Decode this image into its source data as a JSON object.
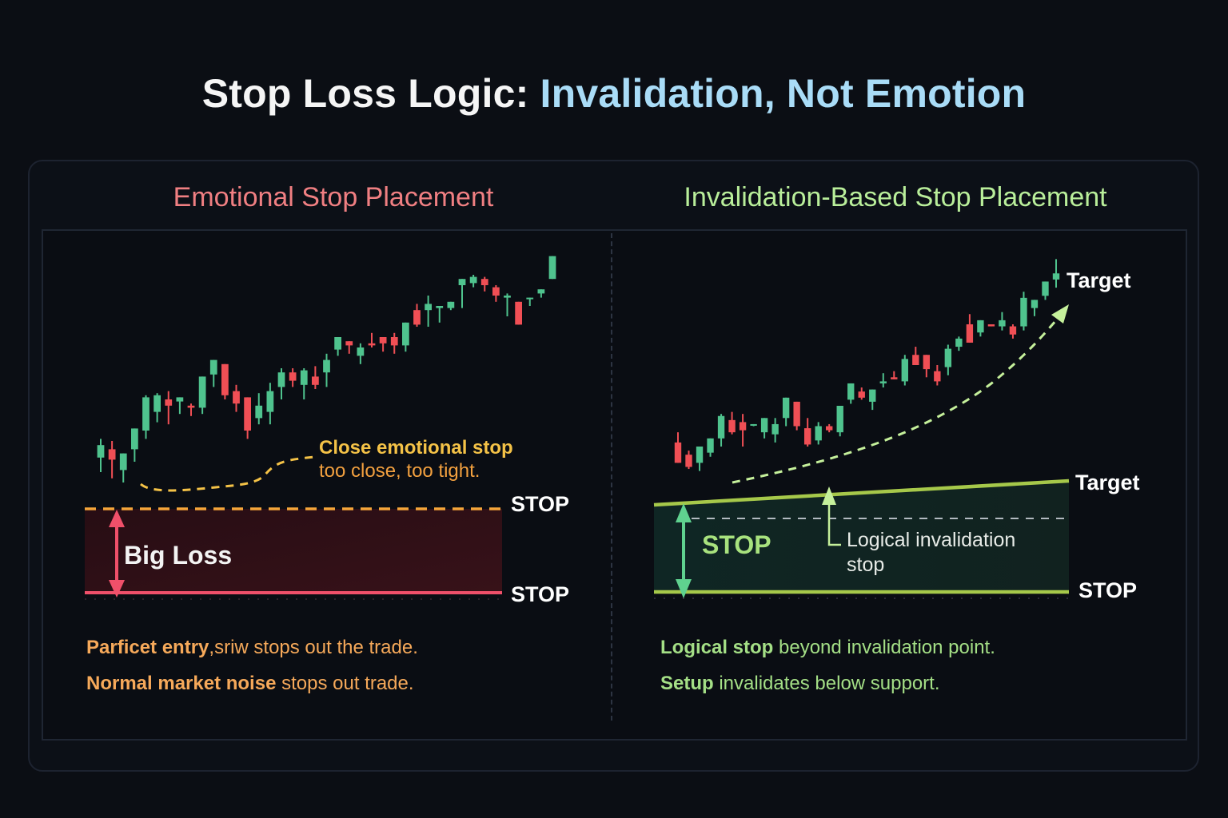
{
  "header": {
    "title_main": "Stop Loss Logic: ",
    "title_accent": "Invalidation, Not Emotion"
  },
  "colors": {
    "background": "#0b0e14",
    "bull_candle": "#4fc38e",
    "bear_candle": "#f04f55",
    "emotional_title": "#f07f82",
    "invalidation_title": "#b9ee9a",
    "title_accent": "#a9dcf7",
    "emotional_stop_line": "#f5a53a",
    "loss_line": "#f0506a",
    "invalidation_lines": "#a6c84a"
  },
  "left_panel": {
    "title": "Emotional Stop Placement",
    "annotation_title": "Close emotional stop",
    "annotation_subtitle": "too close, too tight.",
    "stop_label_top": "STOP",
    "stop_label_bottom": "STOP",
    "loss_label": "Big Loss",
    "note_1_bold": "Parficet entry",
    "note_1_rest": ",sriw stops out the trade.",
    "note_2_bold": "Normal market noise",
    "note_2_rest": " stops out trade."
  },
  "right_panel": {
    "title": "Invalidation-Based Stop Placement",
    "target_label_top": "Target",
    "target_label_mid": "Target",
    "stop_label_box": "STOP",
    "stop_label_bottom": "STOP",
    "logical_label_line1": "Logical invalidation",
    "logical_label_line2": "stop",
    "note_1_bold": "Logical stop",
    "note_1_rest": " beyond invalidation point.",
    "note_2_bold": "Setup",
    "note_2_rest": " invalidates below support."
  },
  "chart_data": [
    {
      "type": "candlestick",
      "title": "Emotional Stop Placement",
      "xlabel": "",
      "ylabel": "",
      "grid": false,
      "note": "Values are approximate pixel-derived prices (higher = higher price); axes unlabeled.",
      "candles": [
        {
          "o": 22,
          "h": 31,
          "l": 15,
          "c": 28
        },
        {
          "o": 26,
          "h": 30,
          "l": 12,
          "c": 21
        },
        {
          "o": 16,
          "h": 23,
          "l": 10,
          "c": 24
        },
        {
          "o": 26,
          "h": 28,
          "l": 20,
          "c": 36
        },
        {
          "o": 35,
          "h": 52,
          "l": 31,
          "c": 51
        },
        {
          "o": 44,
          "h": 53,
          "l": 39,
          "c": 52
        },
        {
          "o": 50,
          "h": 54,
          "l": 38,
          "c": 47
        },
        {
          "o": 49,
          "h": 51,
          "l": 43,
          "c": 51
        },
        {
          "o": 47,
          "h": 48,
          "l": 42,
          "c": 46
        },
        {
          "o": 46,
          "h": 61,
          "l": 43,
          "c": 61
        },
        {
          "o": 62,
          "h": 68,
          "l": 56,
          "c": 69
        },
        {
          "o": 67,
          "h": 67,
          "l": 50,
          "c": 52
        },
        {
          "o": 54,
          "h": 57,
          "l": 44,
          "c": 48
        },
        {
          "o": 51,
          "h": 51,
          "l": 31,
          "c": 35
        },
        {
          "o": 41,
          "h": 53,
          "l": 38,
          "c": 47
        },
        {
          "o": 44,
          "h": 58,
          "l": 38,
          "c": 54
        },
        {
          "o": 56,
          "h": 65,
          "l": 50,
          "c": 63
        },
        {
          "o": 63,
          "h": 65,
          "l": 56,
          "c": 59
        },
        {
          "o": 57,
          "h": 65,
          "l": 50,
          "c": 64
        },
        {
          "o": 61,
          "h": 66,
          "l": 55,
          "c": 57
        },
        {
          "o": 63,
          "h": 72,
          "l": 56,
          "c": 69
        },
        {
          "o": 74,
          "h": 79,
          "l": 71,
          "c": 80
        },
        {
          "o": 78,
          "h": 78,
          "l": 72,
          "c": 76
        },
        {
          "o": 71,
          "h": 77,
          "l": 67,
          "c": 75
        },
        {
          "o": 77,
          "h": 82,
          "l": 75,
          "c": 76
        },
        {
          "o": 80,
          "h": 80,
          "l": 73,
          "c": 77
        },
        {
          "o": 80,
          "h": 82,
          "l": 72,
          "c": 76
        },
        {
          "o": 76,
          "h": 86,
          "l": 73,
          "c": 87
        },
        {
          "o": 93,
          "h": 96,
          "l": 85,
          "c": 86
        },
        {
          "o": 93,
          "h": 100,
          "l": 85,
          "c": 96
        },
        {
          "o": 94,
          "h": 94,
          "l": 87,
          "c": 95
        },
        {
          "o": 94,
          "h": 97,
          "l": 93,
          "c": 97
        },
        {
          "o": 105,
          "h": 107,
          "l": 94,
          "c": 108
        },
        {
          "o": 106,
          "h": 110,
          "l": 104,
          "c": 109
        },
        {
          "o": 108,
          "h": 109,
          "l": 102,
          "c": 105
        },
        {
          "o": 104,
          "h": 105,
          "l": 97,
          "c": 100
        },
        {
          "o": 99,
          "h": 101,
          "l": 90,
          "c": 100
        },
        {
          "o": 97,
          "h": 97,
          "l": 86,
          "c": 86
        },
        {
          "o": 99,
          "h": 99,
          "l": 95,
          "c": 99
        },
        {
          "o": 101,
          "h": 103,
          "l": 99,
          "c": 103
        },
        {
          "o": 108,
          "h": 116,
          "l": 108,
          "c": 119
        }
      ],
      "annotations": [
        "Close emotional stop",
        "too close, too tight.",
        "STOP",
        "STOP",
        "Big Loss"
      ]
    },
    {
      "type": "candlestick",
      "title": "Invalidation-Based Stop Placement",
      "xlabel": "",
      "ylabel": "",
      "grid": false,
      "note": "Values are approximate pixel-derived prices (higher = higher price); axes unlabeled.",
      "candles": [
        {
          "o": 22,
          "h": 27,
          "l": 12,
          "c": 12
        },
        {
          "o": 16,
          "h": 18,
          "l": 9,
          "c": 10
        },
        {
          "o": 12,
          "h": 18,
          "l": 8,
          "c": 20
        },
        {
          "o": 17,
          "h": 24,
          "l": 15,
          "c": 24
        },
        {
          "o": 24,
          "h": 36,
          "l": 20,
          "c": 35
        },
        {
          "o": 33,
          "h": 37,
          "l": 26,
          "c": 27
        },
        {
          "o": 32,
          "h": 36,
          "l": 20,
          "c": 28
        },
        {
          "o": 31,
          "h": 31,
          "l": 30,
          "c": 31
        },
        {
          "o": 27,
          "h": 34,
          "l": 24,
          "c": 34
        },
        {
          "o": 26,
          "h": 34,
          "l": 22,
          "c": 31
        },
        {
          "o": 34,
          "h": 44,
          "l": 30,
          "c": 44
        },
        {
          "o": 42,
          "h": 41,
          "l": 28,
          "c": 30
        },
        {
          "o": 29,
          "h": 34,
          "l": 20,
          "c": 21
        },
        {
          "o": 23,
          "h": 32,
          "l": 21,
          "c": 30
        },
        {
          "o": 30,
          "h": 31,
          "l": 27,
          "c": 28
        },
        {
          "o": 27,
          "h": 40,
          "l": 25,
          "c": 40
        },
        {
          "o": 43,
          "h": 51,
          "l": 41,
          "c": 51
        },
        {
          "o": 47,
          "h": 49,
          "l": 43,
          "c": 44
        },
        {
          "o": 42,
          "h": 48,
          "l": 38,
          "c": 48
        },
        {
          "o": 51,
          "h": 56,
          "l": 49,
          "c": 52
        },
        {
          "o": 54,
          "h": 57,
          "l": 53,
          "c": 53
        },
        {
          "o": 52,
          "h": 65,
          "l": 50,
          "c": 63
        },
        {
          "o": 65,
          "h": 69,
          "l": 60,
          "c": 60
        },
        {
          "o": 65,
          "h": 65,
          "l": 54,
          "c": 58
        },
        {
          "o": 57,
          "h": 60,
          "l": 50,
          "c": 52
        },
        {
          "o": 59,
          "h": 70,
          "l": 55,
          "c": 68
        },
        {
          "o": 69,
          "h": 74,
          "l": 67,
          "c": 73
        },
        {
          "o": 80,
          "h": 85,
          "l": 71,
          "c": 71
        },
        {
          "o": 76,
          "h": 82,
          "l": 74,
          "c": 82
        },
        {
          "o": 80,
          "h": 80,
          "l": 79,
          "c": 79
        },
        {
          "o": 79,
          "h": 86,
          "l": 77,
          "c": 82
        },
        {
          "o": 79,
          "h": 80,
          "l": 73,
          "c": 75
        },
        {
          "o": 79,
          "h": 96,
          "l": 77,
          "c": 93
        },
        {
          "o": 88,
          "h": 91,
          "l": 84,
          "c": 92
        },
        {
          "o": 94,
          "h": 100,
          "l": 92,
          "c": 101
        },
        {
          "o": 102,
          "h": 112,
          "l": 98,
          "c": 105
        }
      ],
      "annotations": [
        "Target",
        "Target",
        "STOP",
        "STOP",
        "Logical invalidation stop"
      ]
    }
  ]
}
